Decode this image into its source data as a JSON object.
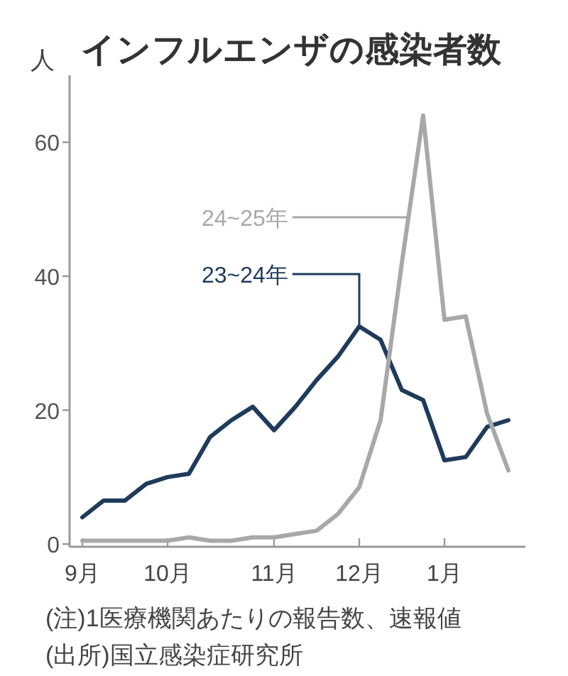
{
  "chart_data": {
    "type": "line",
    "title": "インフルエンザの感染者数",
    "ylabel": "人",
    "categories": [
      "9月",
      null,
      null,
      null,
      "10月",
      null,
      null,
      null,
      null,
      "11月",
      null,
      null,
      null,
      "12月",
      null,
      null,
      null,
      "1月",
      null,
      null,
      null
    ],
    "series": [
      {
        "name": "23~24年",
        "color": "#1f3b5c",
        "values": [
          4,
          6.5,
          6.5,
          9,
          10,
          10.5,
          16,
          18.5,
          20.5,
          17,
          20.5,
          24.5,
          28,
          32.5,
          30.5,
          23,
          21.5,
          12.5,
          13,
          17.5,
          18.5
        ]
      },
      {
        "name": "24~25年",
        "color": "#a8a8a8",
        "values": [
          0.5,
          0.5,
          0.5,
          0.5,
          0.5,
          1,
          0.5,
          0.5,
          1,
          1,
          1.5,
          2,
          4.5,
          8.5,
          18.5,
          42,
          64,
          33.5,
          34,
          19.5,
          11
        ]
      }
    ],
    "ylim": [
      -0.4,
      70
    ],
    "yticks": [
      0,
      20,
      40,
      60
    ],
    "line_style": "solid",
    "annotations": [
      "(注)1医療機関あたりの報告数、速報値",
      "(出所)国立感染症研究所"
    ]
  }
}
